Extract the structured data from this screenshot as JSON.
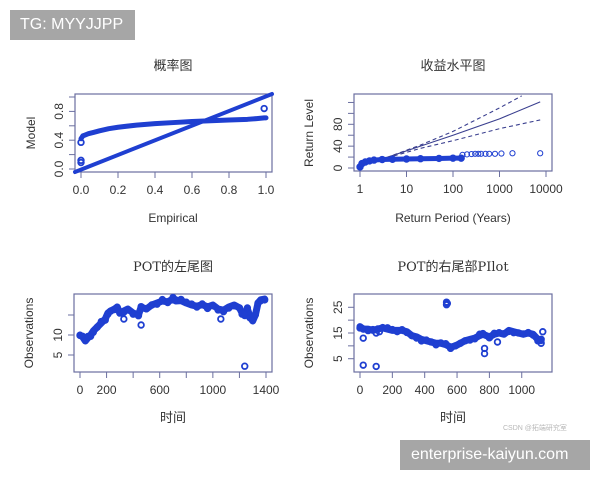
{
  "watermarks": {
    "top_badge": "TG: MYYJJPP",
    "bottom_badge": "enterprise-kaiyun.com",
    "csdn": "CSDN @拓端研究室"
  },
  "colors": {
    "point": "#1f3fd1",
    "frame": "#6b6fa0",
    "axis_text": "#333333",
    "badge_bg": "#a6a6a6"
  },
  "chart_data": [
    {
      "id": "pp",
      "type": "scatter",
      "title": "概率图",
      "xlabel": "Empirical",
      "ylabel": "Model",
      "xlim": [
        0,
        1
      ],
      "ylim": [
        0,
        1
      ],
      "xticks": [
        0.0,
        0.2,
        0.4,
        0.6,
        0.8,
        1.0
      ],
      "xtick_labels": [
        "0.0",
        "0.2",
        "0.4",
        "0.6",
        "0.8",
        "1.0"
      ],
      "yticks": [
        0.0,
        0.2,
        0.4,
        0.6,
        0.8,
        1.0
      ],
      "ytick_labels": [
        "0.0",
        "",
        "0.4",
        "",
        "0.8",
        ""
      ],
      "reference_line": {
        "x": [
          0,
          1
        ],
        "y": [
          0,
          1
        ]
      },
      "series": [
        {
          "name": "model-vs-empirical",
          "x": [
            0.0,
            0.005,
            0.01,
            0.02,
            0.04,
            0.07,
            0.1,
            0.15,
            0.2,
            0.3,
            0.4,
            0.5,
            0.6,
            0.7,
            0.8,
            0.9,
            0.95,
            0.99,
            1.0
          ],
          "y": [
            0.42,
            0.44,
            0.46,
            0.47,
            0.49,
            0.51,
            0.53,
            0.56,
            0.58,
            0.61,
            0.63,
            0.645,
            0.66,
            0.67,
            0.68,
            0.69,
            0.7,
            0.71,
            0.71
          ]
        },
        {
          "name": "outliers",
          "x": [
            0.0,
            0.0,
            0.0,
            0.99
          ],
          "y": [
            0.12,
            0.09,
            0.37,
            0.84
          ]
        }
      ]
    },
    {
      "id": "return-level",
      "type": "line",
      "title": "收益水平图",
      "xlabel": "Return Period (Years)",
      "ylabel": "Return Level",
      "xscale": "log",
      "xlim": [
        1,
        10000
      ],
      "ylim": [
        0,
        130
      ],
      "xticks": [
        1,
        10,
        100,
        1000,
        10000
      ],
      "xtick_labels": [
        "1",
        "10",
        "100",
        "1000",
        "10000"
      ],
      "yticks": [
        0,
        20,
        40,
        60,
        80,
        100,
        120
      ],
      "ytick_labels": [
        "0",
        "",
        "40",
        "",
        "80",
        "",
        ""
      ],
      "series": [
        {
          "name": "fitted",
          "style": "solid",
          "x": [
            1,
            4,
            20,
            100,
            1000,
            7500
          ],
          "y": [
            5,
            20,
            40,
            60,
            90,
            121
          ]
        },
        {
          "name": "upper-ci",
          "style": "dashed",
          "x": [
            1,
            4,
            20,
            100,
            1000,
            3000
          ],
          "y": [
            5,
            20,
            42,
            67,
            110,
            132
          ]
        },
        {
          "name": "lower-ci",
          "style": "dashed",
          "x": [
            1,
            4,
            20,
            100,
            1000,
            7500
          ],
          "y": [
            5,
            19,
            36,
            50,
            72,
            88
          ]
        },
        {
          "name": "observed",
          "style": "points",
          "x": [
            1,
            1.1,
            1.3,
            1.6,
            2,
            3,
            5,
            10,
            20,
            50,
            100,
            150,
            160,
            200,
            250,
            300,
            350,
            400,
            500,
            600,
            800,
            1100,
            1900,
            7500
          ],
          "y": [
            2,
            8,
            11,
            13,
            14.5,
            15.5,
            16,
            16.5,
            17,
            17.5,
            18,
            18,
            24,
            25,
            25.5,
            26,
            26,
            26,
            26,
            26,
            26,
            26.5,
            27,
            27
          ]
        }
      ]
    },
    {
      "id": "pot-left",
      "type": "scatter",
      "title": "POT的左尾图",
      "xlabel": "时间",
      "ylabel": "Observations",
      "xlim": [
        0,
        1400
      ],
      "ylim": [
        1.5,
        19.5
      ],
      "xticks": [
        0,
        200,
        400,
        600,
        800,
        1000,
        1200,
        1400
      ],
      "xtick_labels": [
        "0",
        "200",
        "",
        "600",
        "",
        "1000",
        "",
        "1400"
      ],
      "yticks": [
        5,
        10,
        15
      ],
      "ytick_labels": [
        "5",
        "10",
        ""
      ],
      "series": [
        {
          "name": "observations",
          "x": [
            0,
            20,
            40,
            60,
            80,
            100,
            130,
            160,
            190,
            210,
            230,
            260,
            280,
            300,
            330,
            360,
            400,
            440,
            460,
            500,
            540,
            580,
            620,
            660,
            700,
            720,
            760,
            800,
            840,
            880,
            920,
            960,
            1000,
            1040,
            1080,
            1120,
            1160,
            1200,
            1220,
            1240,
            1260,
            1280,
            1300,
            1320,
            1340,
            1360,
            1390
          ],
          "y": [
            10,
            9.5,
            8.5,
            9.3,
            10,
            11,
            12,
            13,
            14,
            15.5,
            16,
            16.5,
            17,
            15.5,
            16,
            16.5,
            15.5,
            15,
            17,
            16.5,
            17.5,
            18,
            18.5,
            18.3,
            19,
            18.5,
            18.6,
            18,
            17.5,
            17.2,
            17.6,
            17,
            17.5,
            16.5,
            16.2,
            17,
            17.5,
            16.8,
            15.5,
            14.8,
            16.5,
            14.5,
            13.5,
            15,
            18,
            18.8,
            19
          ]
        },
        {
          "name": "outliers",
          "x": [
            1240,
            460,
            330,
            1060
          ],
          "y": [
            2.2,
            12.5,
            14,
            14
          ]
        }
      ]
    },
    {
      "id": "pot-right",
      "type": "scatter",
      "title": "POT的右尾部PIlot",
      "xlabel": "时间",
      "ylabel": "Observations",
      "xlim": [
        0,
        1150
      ],
      "ylim": [
        1,
        29
      ],
      "xticks": [
        0,
        200,
        400,
        600,
        800,
        1000
      ],
      "xtick_labels": [
        "0",
        "200",
        "400",
        "600",
        "800",
        "1000"
      ],
      "yticks": [
        5,
        10,
        15,
        20,
        25
      ],
      "ytick_labels": [
        "5",
        "",
        "15",
        "",
        "25"
      ],
      "series": [
        {
          "name": "observations",
          "x": [
            0,
            20,
            50,
            80,
            110,
            140,
            170,
            200,
            230,
            260,
            290,
            320,
            350,
            380,
            410,
            440,
            470,
            500,
            530,
            560,
            590,
            620,
            650,
            680,
            710,
            740,
            760,
            800,
            830,
            860,
            890,
            920,
            950,
            980,
            1010,
            1040,
            1070,
            1100,
            1120
          ],
          "y": [
            17.5,
            16.5,
            16.5,
            16,
            16.5,
            17,
            16.5,
            16,
            16,
            16,
            15.5,
            14,
            13.5,
            12.5,
            12,
            11.5,
            11,
            11,
            10.5,
            9.5,
            10,
            11,
            12,
            12.5,
            13,
            14,
            14.5,
            13.5,
            14.5,
            15,
            14.5,
            16,
            15.5,
            15,
            14.5,
            15,
            14.5,
            12.5,
            12
          ]
        },
        {
          "name": "outliers",
          "x": [
            535,
            535,
            540,
            20,
            100,
            20,
            100,
            770,
            770,
            850,
            1120,
            1130,
            120
          ],
          "y": [
            26,
            27,
            26.5,
            2.5,
            2,
            13,
            15,
            9,
            7,
            11.5,
            11,
            15.5,
            15.5
          ]
        }
      ]
    }
  ]
}
